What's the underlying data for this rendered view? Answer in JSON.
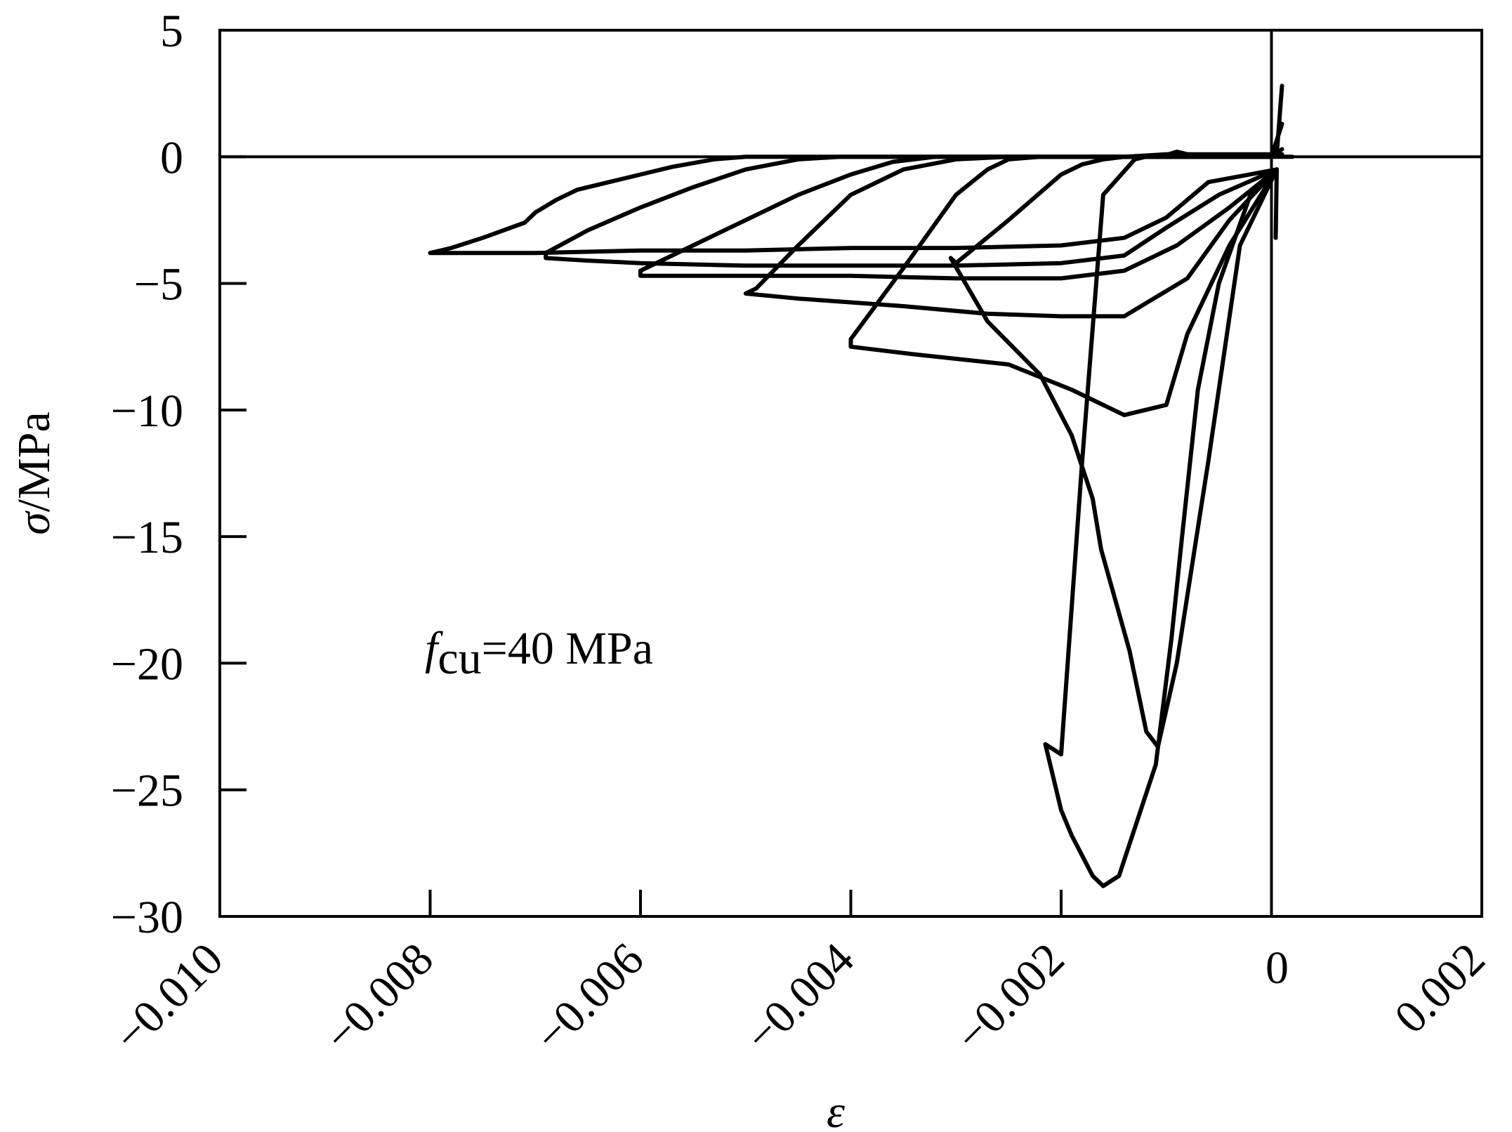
{
  "chart_data": {
    "type": "line",
    "x_symbol": "ε",
    "y_symbol": "σ",
    "y_unit": "/MPa",
    "annotation": {
      "symbol": "f",
      "subscript": "cu",
      "text": "=40 MPa"
    },
    "xlim": [
      -0.01,
      0.002
    ],
    "ylim": [
      -30,
      5
    ],
    "x_ticks": [
      -0.01,
      -0.008,
      -0.006,
      -0.004,
      -0.002,
      0,
      0.002
    ],
    "x_tick_labels": [
      "−0.010",
      "−0.008",
      "−0.006",
      "−0.004",
      "−0.002",
      "0",
      "0.002"
    ],
    "y_ticks": [
      5,
      0,
      -5,
      -10,
      -15,
      -20,
      -25,
      -30
    ],
    "y_tick_labels": [
      "5",
      "0",
      "−5",
      "−10",
      "−15",
      "−20",
      "−25",
      "−30"
    ],
    "reference_lines": {
      "x_zero": true,
      "y_zero": true
    },
    "line_color": "#000000",
    "series": [
      {
        "points": [
          [
            4e-05,
            -3.2
          ],
          [
            5e-05,
            -0.5
          ],
          [
            -0.0002,
            -1.5
          ],
          [
            -0.0005,
            -5.0
          ],
          [
            -0.0007,
            -9.2
          ],
          [
            -0.00085,
            -15.0
          ],
          [
            -0.00095,
            -19.0
          ],
          [
            -0.0011,
            -24.0
          ],
          [
            -0.00145,
            -28.4
          ],
          [
            -0.0016,
            -28.8
          ],
          [
            -0.0017,
            -28.4
          ],
          [
            -0.0019,
            -26.8
          ],
          [
            -0.002,
            -25.8
          ],
          [
            -0.00215,
            -23.2
          ],
          [
            -0.002,
            -23.6
          ],
          [
            -0.0018,
            -12.0
          ],
          [
            -0.0016,
            -1.5
          ],
          [
            -0.0013,
            -0.1
          ],
          [
            -0.0012,
            0
          ],
          [
            -0.00106,
            0
          ],
          [
            -0.0009,
            0.2
          ],
          [
            -0.0008,
            0.1
          ],
          [
            -0.0004,
            0
          ],
          [
            0,
            0
          ],
          [
            0.0002,
            0.0
          ]
        ]
      },
      {
        "points": [
          [
            5e-05,
            -0.5
          ],
          [
            -0.0003,
            -3.5
          ],
          [
            -0.0006,
            -12.0
          ],
          [
            -0.0009,
            -20.0
          ],
          [
            -0.00108,
            -23.3
          ],
          [
            -0.00119,
            -22.7
          ],
          [
            -0.00135,
            -19.5
          ],
          [
            -0.00162,
            -15.5
          ],
          [
            -0.0017,
            -13.5
          ],
          [
            -0.0019,
            -11.0
          ],
          [
            -0.0022,
            -8.6
          ],
          [
            -0.0027,
            -6.5
          ],
          [
            -0.00305,
            -4.0
          ],
          [
            -0.003,
            -4.2
          ],
          [
            -0.0025,
            -2.5
          ],
          [
            -0.002,
            -0.7
          ],
          [
            -0.0018,
            -0.3
          ],
          [
            -0.0016,
            -0.1
          ],
          [
            -0.0015,
            -0.05
          ],
          [
            -0.0014,
            0
          ],
          [
            -0.001,
            0.1
          ],
          [
            5e-05,
            0.1
          ],
          [
            0.0001,
            2.8
          ]
        ]
      },
      {
        "points": [
          [
            5e-05,
            -0.5
          ],
          [
            -0.0004,
            -3.5
          ],
          [
            -0.0008,
            -7.0
          ],
          [
            -0.001,
            -9.8
          ],
          [
            -0.0014,
            -10.2
          ],
          [
            -0.0019,
            -9.2
          ],
          [
            -0.0025,
            -8.2
          ],
          [
            -0.0034,
            -7.8
          ],
          [
            -0.004,
            -7.5
          ],
          [
            -0.004,
            -7.2
          ],
          [
            -0.0035,
            -4.4
          ],
          [
            -0.003,
            -1.5
          ],
          [
            -0.0027,
            -0.5
          ],
          [
            -0.0025,
            -0.1
          ],
          [
            -0.0022,
            0
          ],
          [
            -0.0015,
            0
          ],
          [
            0,
            0
          ],
          [
            0.0001,
            1.3
          ]
        ]
      },
      {
        "points": [
          [
            5e-05,
            -0.5
          ],
          [
            -0.0004,
            -2.5
          ],
          [
            -0.0008,
            -4.8
          ],
          [
            -0.001,
            -5.3
          ],
          [
            -0.0014,
            -6.3
          ],
          [
            -0.002,
            -6.3
          ],
          [
            -0.0027,
            -6.2
          ],
          [
            -0.0035,
            -5.9
          ],
          [
            -0.0045,
            -5.6
          ],
          [
            -0.005,
            -5.4
          ],
          [
            -0.0049,
            -5.2
          ],
          [
            -0.0045,
            -3.5
          ],
          [
            -0.004,
            -1.5
          ],
          [
            -0.0035,
            -0.5
          ],
          [
            -0.003,
            -0.1
          ],
          [
            -0.0025,
            0
          ],
          [
            -0.0015,
            0
          ],
          [
            0,
            0
          ],
          [
            0.0001,
            0.3
          ]
        ]
      },
      {
        "points": [
          [
            5e-05,
            -0.5
          ],
          [
            -0.0004,
            -2.0
          ],
          [
            -0.0009,
            -3.5
          ],
          [
            -0.0014,
            -4.5
          ],
          [
            -0.002,
            -4.8
          ],
          [
            -0.003,
            -4.8
          ],
          [
            -0.004,
            -4.7
          ],
          [
            -0.005,
            -4.7
          ],
          [
            -0.006,
            -4.7
          ],
          [
            -0.006,
            -4.5
          ],
          [
            -0.0055,
            -3.5
          ],
          [
            -0.005,
            -2.5
          ],
          [
            -0.0045,
            -1.5
          ],
          [
            -0.004,
            -0.7
          ],
          [
            -0.0036,
            -0.2
          ],
          [
            -0.0032,
            0
          ],
          [
            -0.002,
            0
          ],
          [
            -0.001,
            0
          ],
          [
            0,
            0
          ],
          [
            0.0001,
            0.1
          ]
        ]
      },
      {
        "points": [
          [
            5e-05,
            -0.5
          ],
          [
            -0.0005,
            -1.5
          ],
          [
            -0.001,
            -2.8
          ],
          [
            -0.0014,
            -3.9
          ],
          [
            -0.002,
            -4.2
          ],
          [
            -0.003,
            -4.3
          ],
          [
            -0.004,
            -4.3
          ],
          [
            -0.005,
            -4.3
          ],
          [
            -0.006,
            -4.2
          ],
          [
            -0.0065,
            -4.1
          ],
          [
            -0.0069,
            -4.0
          ],
          [
            -0.0069,
            -3.8
          ],
          [
            -0.0065,
            -2.9
          ],
          [
            -0.006,
            -2.0
          ],
          [
            -0.0055,
            -1.2
          ],
          [
            -0.005,
            -0.5
          ],
          [
            -0.0045,
            -0.1
          ],
          [
            -0.0041,
            0
          ],
          [
            -0.003,
            0
          ],
          [
            -0.001,
            0
          ],
          [
            0,
            0
          ]
        ]
      },
      {
        "points": [
          [
            5e-05,
            -0.5
          ],
          [
            -0.0006,
            -1.0
          ],
          [
            -0.001,
            -2.4
          ],
          [
            -0.0014,
            -3.2
          ],
          [
            -0.002,
            -3.5
          ],
          [
            -0.003,
            -3.6
          ],
          [
            -0.004,
            -3.6
          ],
          [
            -0.005,
            -3.7
          ],
          [
            -0.006,
            -3.7
          ],
          [
            -0.007,
            -3.8
          ],
          [
            -0.008,
            -3.8
          ],
          [
            -0.0078,
            -3.6
          ],
          [
            -0.0075,
            -3.2
          ],
          [
            -0.0071,
            -2.6
          ],
          [
            -0.007,
            -2.2
          ],
          [
            -0.0068,
            -1.7
          ],
          [
            -0.0066,
            -1.3
          ],
          [
            -0.0063,
            -1.0
          ],
          [
            -0.006,
            -0.7
          ],
          [
            -0.0057,
            -0.4
          ],
          [
            -0.0053,
            -0.1
          ],
          [
            -0.005,
            0
          ],
          [
            -0.004,
            0
          ],
          [
            -0.003,
            0
          ],
          [
            -0.002,
            0
          ],
          [
            -0.001,
            0
          ],
          [
            0,
            0
          ]
        ]
      }
    ]
  }
}
